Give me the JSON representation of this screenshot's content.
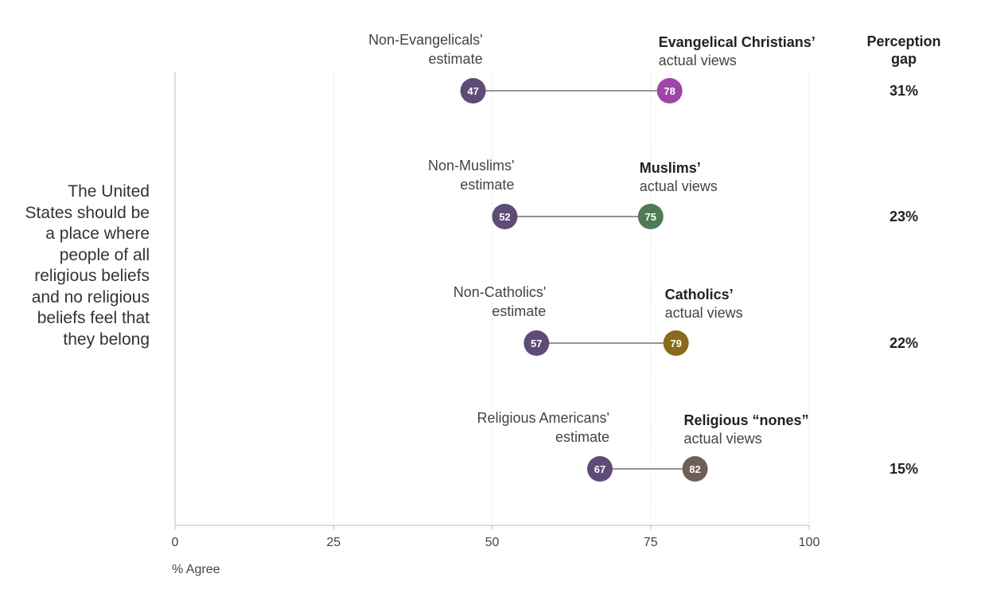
{
  "chart_data": {
    "type": "dumbbell",
    "statement": "The United States should be a place where people of all religious beliefs and no religious beliefs feel that they belong",
    "xlabel": "% Agree",
    "xlim": [
      0,
      100
    ],
    "xticks": [
      "0",
      "25",
      "50",
      "75",
      "100"
    ],
    "gap_header": "Perception gap",
    "rows": [
      {
        "estimate_label": [
          "Non-Evangelicals'",
          "estimate"
        ],
        "estimate_value": 47,
        "actual_label_bold": "Evangelical Christians’",
        "actual_label": "actual views",
        "actual_value": 78,
        "actual_color": "#9e45a6",
        "gap": "31%"
      },
      {
        "estimate_label": [
          "Non-Muslims'",
          "estimate"
        ],
        "estimate_value": 52,
        "actual_label_bold": "Muslims’",
        "actual_label": "actual views",
        "actual_value": 75,
        "actual_color": "#4f7a55",
        "gap": "23%"
      },
      {
        "estimate_label": [
          "Non-Catholics'",
          "estimate"
        ],
        "estimate_value": 57,
        "actual_label_bold": "Catholics’",
        "actual_label": "actual views",
        "actual_value": 79,
        "actual_color": "#8a6a1c",
        "gap": "22%"
      },
      {
        "estimate_label": [
          "Religious Americans'",
          "estimate"
        ],
        "estimate_value": 67,
        "actual_label_bold": "Religious “nones”",
        "actual_label": "actual views",
        "actual_value": 82,
        "actual_color": "#6f5e57",
        "gap": "15%"
      }
    ],
    "estimate_color": "#5e4b78"
  }
}
